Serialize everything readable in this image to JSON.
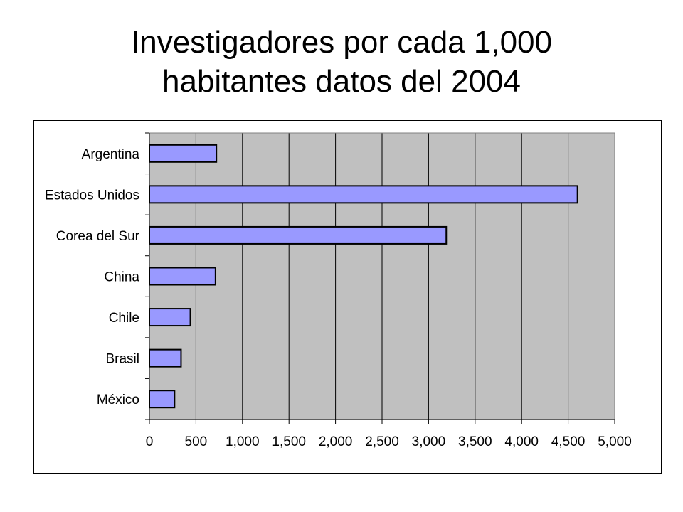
{
  "title": {
    "line1": "Investigadores por cada 1,000",
    "line2": "habitantes datos del 2004"
  },
  "chart_data": {
    "type": "bar",
    "orientation": "horizontal",
    "title": "Investigadores por cada 1,000 habitantes datos del 2004",
    "categories": [
      "Argentina",
      "Estados Unidos",
      "Corea del Sur",
      "China",
      "Chile",
      "Brasil",
      "México"
    ],
    "values": [
      720,
      4600,
      3190,
      710,
      440,
      340,
      270
    ],
    "xlim": [
      0,
      5000
    ],
    "xticks": [
      "0",
      "500",
      "1,000",
      "1,500",
      "2,000",
      "2,500",
      "3,000",
      "3,500",
      "4,000",
      "4,500",
      "5,000"
    ],
    "xtick_values": [
      0,
      500,
      1000,
      1500,
      2000,
      2500,
      3000,
      3500,
      4000,
      4500,
      5000
    ],
    "grid": "vertical",
    "legend": "none",
    "colors": {
      "bar": "#9999ff",
      "plot_background": "#c0c0c0",
      "bar_border": "#000000"
    }
  }
}
